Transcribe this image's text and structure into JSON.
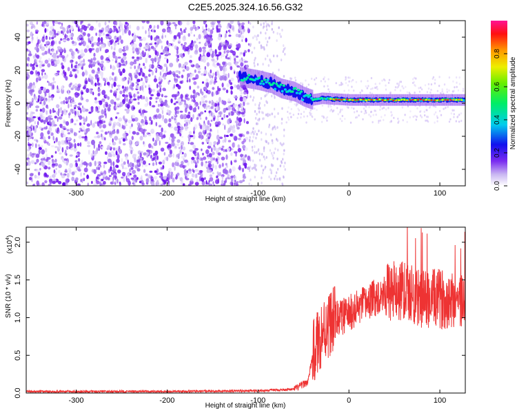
{
  "title": "C2E5.2025.324.16.56.G32",
  "chart_data": [
    {
      "type": "heatmap",
      "xlabel": "Height of straight line (km)",
      "ylabel": "Frequency (Hz)",
      "xlim": [
        -355,
        128
      ],
      "ylim": [
        -50,
        50
      ],
      "xticks": [
        -300,
        -200,
        -100,
        0,
        100
      ],
      "yticks": [
        -40,
        -20,
        0,
        20,
        40
      ],
      "colorbar": {
        "label": "Normalized spectral amplitude",
        "range": [
          0.0,
          1.0
        ],
        "ticks": [
          "0.0",
          "0.2",
          "0.4",
          "0.6",
          "0.8"
        ]
      },
      "ridge": [
        {
          "x": -120,
          "f": 16
        },
        {
          "x": -100,
          "f": 14
        },
        {
          "x": -85,
          "f": 12
        },
        {
          "x": -75,
          "f": 9
        },
        {
          "x": -60,
          "f": 7
        },
        {
          "x": -50,
          "f": 4
        },
        {
          "x": -40,
          "f": 2
        },
        {
          "x": -30,
          "f": 3
        },
        {
          "x": 0,
          "f": 2
        },
        {
          "x": 50,
          "f": 2
        },
        {
          "x": 100,
          "f": 2
        },
        {
          "x": 125,
          "f": 2
        }
      ]
    },
    {
      "type": "line",
      "xlabel": "Height of straight line (km)",
      "ylabel": "SNR (10 * v/v)",
      "y_multiplier": "(x10",
      "y_multiplier_exp": "4",
      "y_multiplier_close": ")",
      "xlim": [
        -355,
        128
      ],
      "ylim": [
        0.0,
        2.2
      ],
      "xticks": [
        -300,
        -200,
        -100,
        0,
        100
      ],
      "yticks": [
        "0.0",
        "0.5",
        "1.0",
        "1.5",
        "2.0"
      ],
      "color": "#ee3333",
      "series": [
        {
          "x": [
            -355,
            -300,
            -200,
            -100,
            -60,
            -45,
            -40,
            -30,
            -20,
            -10,
            0,
            20,
            40,
            60,
            80,
            100,
            115,
            128
          ],
          "y": [
            0.02,
            0.02,
            0.02,
            0.03,
            0.05,
            0.15,
            0.5,
            0.8,
            0.95,
            1.0,
            1.05,
            1.2,
            1.35,
            1.35,
            1.25,
            1.25,
            1.25,
            1.2
          ]
        }
      ]
    }
  ]
}
